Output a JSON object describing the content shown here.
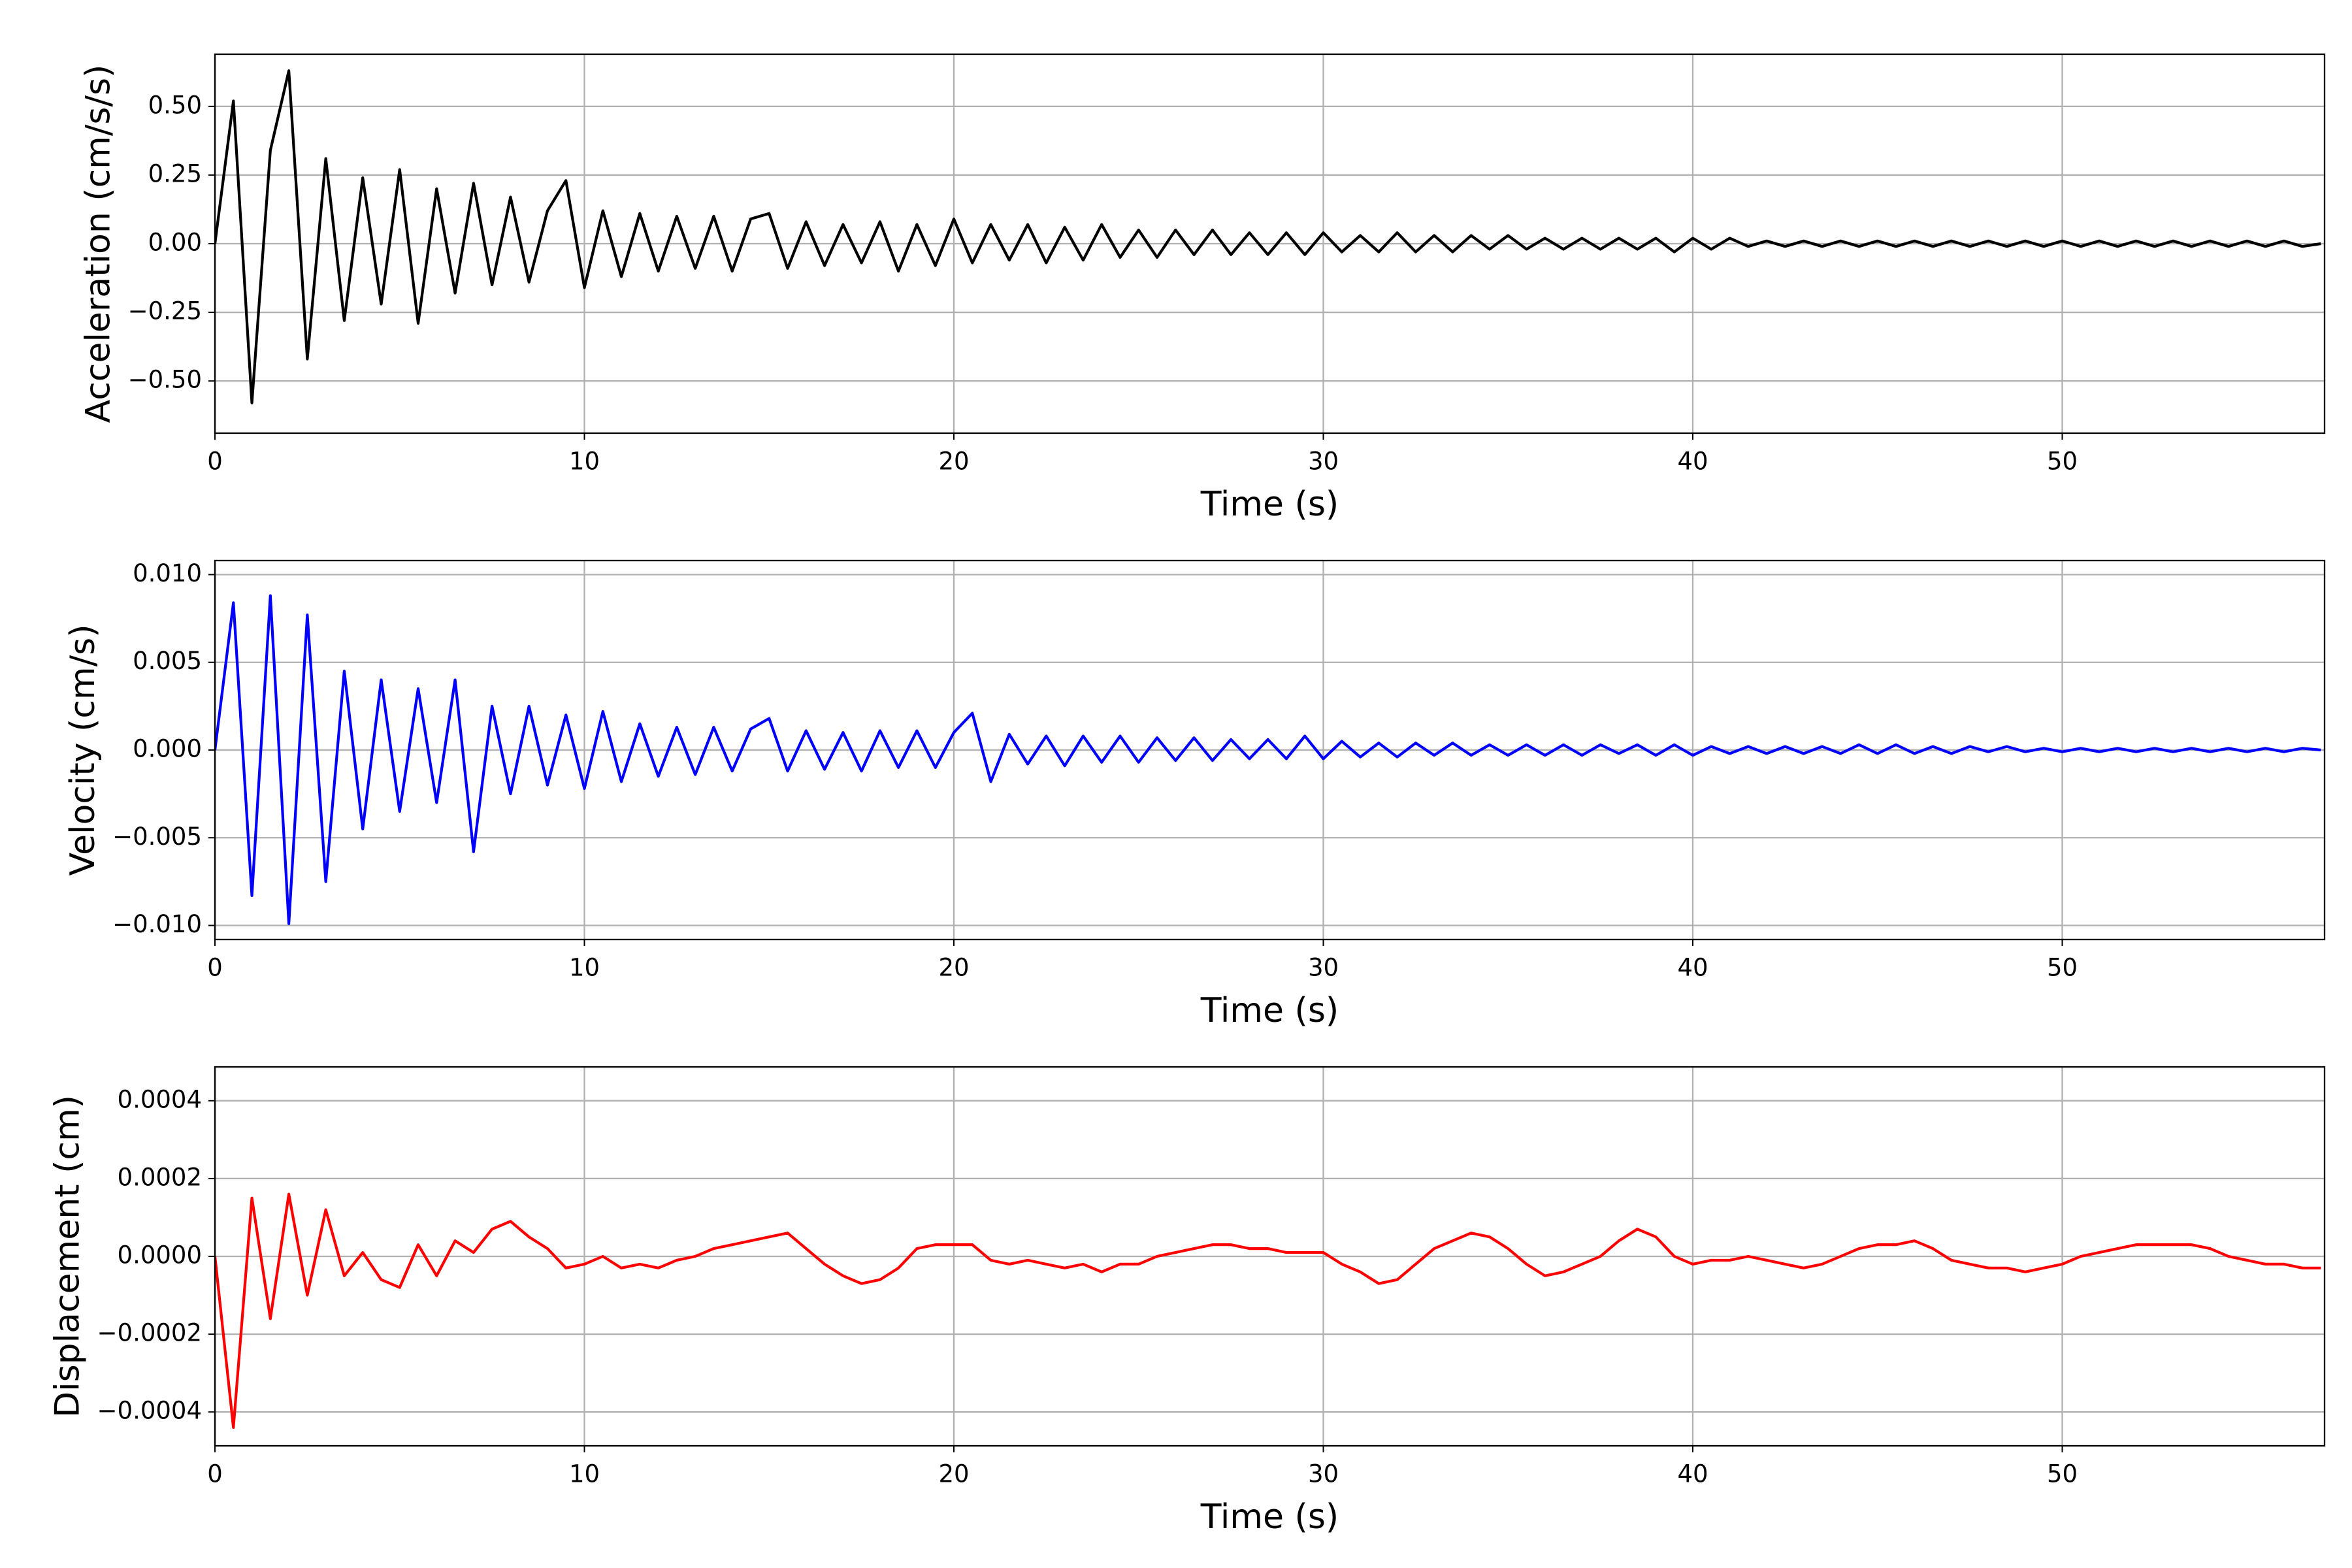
{
  "chart_data": [
    {
      "type": "line",
      "xlabel": "Time (s)",
      "ylabel": "Acceleration (cm/s/s)",
      "color": "#000000",
      "grid": true,
      "xlim": [
        0,
        57.1
      ],
      "xticks": [
        0,
        10,
        20,
        30,
        40,
        50
      ],
      "ylim": [
        -0.69,
        0.69
      ],
      "yticks": [
        {
          "value": -0.5,
          "label": "−0.50"
        },
        {
          "value": -0.25,
          "label": "−0.25"
        },
        {
          "value": 0,
          "label": "0.00"
        },
        {
          "value": 0.25,
          "label": "0.25"
        },
        {
          "value": 0.5,
          "label": "0.50"
        }
      ],
      "x": [
        0,
        0.5,
        1,
        1.5,
        2,
        2.5,
        3,
        3.5,
        4,
        4.5,
        5,
        5.5,
        6,
        6.5,
        7,
        7.5,
        8,
        8.5,
        9,
        9.5,
        10,
        10.5,
        11,
        11.5,
        12,
        12.5,
        13,
        13.5,
        14,
        14.5,
        15,
        15.5,
        16,
        16.5,
        17,
        17.5,
        18,
        18.5,
        19,
        19.5,
        20,
        20.5,
        21,
        21.5,
        22,
        22.5,
        23,
        23.5,
        24,
        24.5,
        25,
        25.5,
        26,
        26.5,
        27,
        27.5,
        28,
        28.5,
        29,
        29.5,
        30,
        30.5,
        31,
        31.5,
        32,
        32.5,
        33,
        33.5,
        34,
        34.5,
        35,
        35.5,
        36,
        36.5,
        37,
        37.5,
        38,
        38.5,
        39,
        39.5,
        40,
        40.5,
        41,
        41.5,
        42,
        42.5,
        43,
        43.5,
        44,
        44.5,
        45,
        45.5,
        46,
        46.5,
        47,
        47.5,
        48,
        48.5,
        49,
        49.5,
        50,
        50.5,
        51,
        51.5,
        52,
        52.5,
        53,
        53.5,
        54,
        54.5,
        55,
        55.5,
        56,
        56.5,
        57
      ],
      "values": [
        0.0,
        0.52,
        -0.58,
        0.34,
        0.63,
        -0.42,
        0.31,
        -0.28,
        0.24,
        -0.22,
        0.27,
        -0.29,
        0.2,
        -0.18,
        0.22,
        -0.15,
        0.17,
        -0.14,
        0.12,
        0.23,
        -0.16,
        0.12,
        -0.12,
        0.11,
        -0.1,
        0.1,
        -0.09,
        0.1,
        -0.1,
        0.09,
        0.11,
        -0.09,
        0.08,
        -0.08,
        0.07,
        -0.07,
        0.08,
        -0.1,
        0.07,
        -0.08,
        0.09,
        -0.07,
        0.07,
        -0.06,
        0.07,
        -0.07,
        0.06,
        -0.06,
        0.07,
        -0.05,
        0.05,
        -0.05,
        0.05,
        -0.04,
        0.05,
        -0.04,
        0.04,
        -0.04,
        0.04,
        -0.04,
        0.04,
        -0.03,
        0.03,
        -0.03,
        0.04,
        -0.03,
        0.03,
        -0.03,
        0.03,
        -0.02,
        0.03,
        -0.02,
        0.02,
        -0.02,
        0.02,
        -0.02,
        0.02,
        -0.02,
        0.02,
        -0.03,
        0.02,
        -0.02,
        0.02,
        -0.01,
        0.01,
        -0.01,
        0.01,
        -0.01,
        0.01,
        -0.01,
        0.01,
        -0.01,
        0.01,
        -0.01,
        0.01,
        -0.01,
        0.01,
        -0.01,
        0.01,
        -0.01,
        0.01,
        -0.01,
        0.01,
        -0.01,
        0.01,
        -0.01,
        0.01,
        -0.01,
        0.01,
        -0.01,
        0.01,
        -0.01,
        0.01,
        -0.01,
        0.0
      ]
    },
    {
      "type": "line",
      "xlabel": "Time (s)",
      "ylabel": "Velocity (cm/s)",
      "color": "#0000ff",
      "grid": true,
      "xlim": [
        0,
        57.1
      ],
      "xticks": [
        0,
        10,
        20,
        30,
        40,
        50
      ],
      "ylim": [
        -0.0108,
        0.0108
      ],
      "yticks": [
        {
          "value": -0.01,
          "label": "−0.010"
        },
        {
          "value": -0.005,
          "label": "−0.005"
        },
        {
          "value": 0,
          "label": "0.000"
        },
        {
          "value": 0.005,
          "label": "0.005"
        },
        {
          "value": 0.01,
          "label": "0.010"
        }
      ],
      "x": [
        0,
        0.5,
        1,
        1.5,
        2,
        2.5,
        3,
        3.5,
        4,
        4.5,
        5,
        5.5,
        6,
        6.5,
        7,
        7.5,
        8,
        8.5,
        9,
        9.5,
        10,
        10.5,
        11,
        11.5,
        12,
        12.5,
        13,
        13.5,
        14,
        14.5,
        15,
        15.5,
        16,
        16.5,
        17,
        17.5,
        18,
        18.5,
        19,
        19.5,
        20,
        20.5,
        21,
        21.5,
        22,
        22.5,
        23,
        23.5,
        24,
        24.5,
        25,
        25.5,
        26,
        26.5,
        27,
        27.5,
        28,
        28.5,
        29,
        29.5,
        30,
        30.5,
        31,
        31.5,
        32,
        32.5,
        33,
        33.5,
        34,
        34.5,
        35,
        35.5,
        36,
        36.5,
        37,
        37.5,
        38,
        38.5,
        39,
        39.5,
        40,
        40.5,
        41,
        41.5,
        42,
        42.5,
        43,
        43.5,
        44,
        44.5,
        45,
        45.5,
        46,
        46.5,
        47,
        47.5,
        48,
        48.5,
        49,
        49.5,
        50,
        50.5,
        51,
        51.5,
        52,
        52.5,
        53,
        53.5,
        54,
        54.5,
        55,
        55.5,
        56,
        56.5,
        57
      ],
      "values": [
        0.0,
        0.0084,
        -0.0083,
        0.0088,
        -0.0099,
        0.0077,
        -0.0075,
        0.0045,
        -0.0045,
        0.004,
        -0.0035,
        0.0035,
        -0.003,
        0.004,
        -0.0058,
        0.0025,
        -0.0025,
        0.0025,
        -0.002,
        0.002,
        -0.0022,
        0.0022,
        -0.0018,
        0.0015,
        -0.0015,
        0.0013,
        -0.0014,
        0.0013,
        -0.0012,
        0.0012,
        0.0018,
        -0.0012,
        0.0011,
        -0.0011,
        0.001,
        -0.0012,
        0.0011,
        -0.001,
        0.0011,
        -0.001,
        0.001,
        0.0021,
        -0.0018,
        0.0009,
        -0.0008,
        0.0008,
        -0.0009,
        0.0008,
        -0.0007,
        0.0008,
        -0.0007,
        0.0007,
        -0.0006,
        0.0007,
        -0.0006,
        0.0006,
        -0.0005,
        0.0006,
        -0.0005,
        0.0008,
        -0.0005,
        0.0005,
        -0.0004,
        0.0004,
        -0.0004,
        0.0004,
        -0.0003,
        0.0004,
        -0.0003,
        0.0003,
        -0.0003,
        0.0003,
        -0.0003,
        0.0003,
        -0.0003,
        0.0003,
        -0.0002,
        0.0003,
        -0.0003,
        0.0003,
        -0.0003,
        0.0002,
        -0.0002,
        0.0002,
        -0.0002,
        0.0002,
        -0.0002,
        0.0002,
        -0.0002,
        0.0003,
        -0.0002,
        0.0003,
        -0.0002,
        0.0002,
        -0.0002,
        0.0002,
        -0.0001,
        0.0002,
        -0.0001,
        0.0001,
        -0.0001,
        0.0001,
        -0.0001,
        0.0001,
        -0.0001,
        0.0001,
        -0.0001,
        0.0001,
        -0.0001,
        0.0001,
        -0.0001,
        0.0001,
        -0.0001,
        0.0001,
        0.0
      ]
    },
    {
      "type": "line",
      "xlabel": "Time (s)",
      "ylabel": "Displacement (cm)",
      "color": "#ff0000",
      "grid": true,
      "xlim": [
        0,
        57.1
      ],
      "xticks": [
        0,
        10,
        20,
        30,
        40,
        50
      ],
      "ylim": [
        -0.000487,
        0.000487
      ],
      "yticks": [
        {
          "value": -0.0004,
          "label": "−0.0004"
        },
        {
          "value": -0.0002,
          "label": "−0.0002"
        },
        {
          "value": 0,
          "label": "0.0000"
        },
        {
          "value": 0.0002,
          "label": "0.0002"
        },
        {
          "value": 0.0004,
          "label": "0.0004"
        }
      ],
      "x": [
        0,
        0.5,
        1,
        1.5,
        2,
        2.5,
        3,
        3.5,
        4,
        4.5,
        5,
        5.5,
        6,
        6.5,
        7,
        7.5,
        8,
        8.5,
        9,
        9.5,
        10,
        10.5,
        11,
        11.5,
        12,
        12.5,
        13,
        13.5,
        14,
        14.5,
        15,
        15.5,
        16,
        16.5,
        17,
        17.5,
        18,
        18.5,
        19,
        19.5,
        20,
        20.5,
        21,
        21.5,
        22,
        22.5,
        23,
        23.5,
        24,
        24.5,
        25,
        25.5,
        26,
        26.5,
        27,
        27.5,
        28,
        28.5,
        29,
        29.5,
        30,
        30.5,
        31,
        31.5,
        32,
        32.5,
        33,
        33.5,
        34,
        34.5,
        35,
        35.5,
        36,
        36.5,
        37,
        37.5,
        38,
        38.5,
        39,
        39.5,
        40,
        40.5,
        41,
        41.5,
        42,
        42.5,
        43,
        43.5,
        44,
        44.5,
        45,
        45.5,
        46,
        46.5,
        47,
        47.5,
        48,
        48.5,
        49,
        49.5,
        50,
        50.5,
        51,
        51.5,
        52,
        52.5,
        53,
        53.5,
        54,
        54.5,
        55,
        55.5,
        56,
        56.5,
        57
      ],
      "values": [
        0.0,
        -0.00044,
        0.00015,
        -0.00016,
        0.00016,
        -0.0001,
        0.00012,
        -5e-05,
        1e-05,
        -6e-05,
        -8e-05,
        3e-05,
        -5e-05,
        4e-05,
        1e-05,
        7e-05,
        9e-05,
        5e-05,
        2e-05,
        -3e-05,
        -2e-05,
        0.0,
        -3e-05,
        -2e-05,
        -3e-05,
        -1e-05,
        0.0,
        2e-05,
        3e-05,
        4e-05,
        5e-05,
        6e-05,
        2e-05,
        -2e-05,
        -5e-05,
        -7e-05,
        -6e-05,
        -3e-05,
        2e-05,
        3e-05,
        3e-05,
        3e-05,
        -1e-05,
        -2e-05,
        -1e-05,
        -2e-05,
        -3e-05,
        -2e-05,
        -4e-05,
        -2e-05,
        -2e-05,
        0.0,
        1e-05,
        2e-05,
        3e-05,
        3e-05,
        2e-05,
        2e-05,
        1e-05,
        1e-05,
        1e-05,
        -2e-05,
        -4e-05,
        -7e-05,
        -6e-05,
        -2e-05,
        2e-05,
        4e-05,
        6e-05,
        5e-05,
        2e-05,
        -2e-05,
        -5e-05,
        -4e-05,
        -2e-05,
        0.0,
        4e-05,
        7e-05,
        5e-05,
        0.0,
        -2e-05,
        -1e-05,
        -1e-05,
        0.0,
        -1e-05,
        -2e-05,
        -3e-05,
        -2e-05,
        0.0,
        2e-05,
        3e-05,
        3e-05,
        4e-05,
        2e-05,
        -1e-05,
        -2e-05,
        -3e-05,
        -3e-05,
        -4e-05,
        -3e-05,
        -2e-05,
        0.0,
        1e-05,
        2e-05,
        3e-05,
        3e-05,
        3e-05,
        3e-05,
        2e-05,
        0.0,
        -1e-05,
        -2e-05,
        -2e-05,
        -3e-05,
        -3e-05
      ]
    }
  ]
}
